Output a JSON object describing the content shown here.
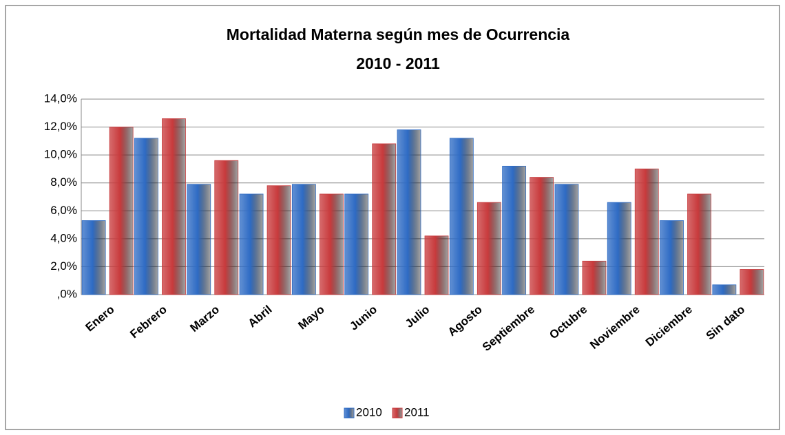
{
  "chart_data": {
    "type": "bar",
    "title": "Mortalidad Materna según mes de Ocurrencia",
    "subtitle": "2010 - 2011",
    "categories": [
      "Enero",
      "Febrero",
      "Marzo",
      "Abril",
      "Mayo",
      "Junio",
      "Julio",
      "Agosto",
      "Septiembre",
      "Octubre",
      "Noviembre",
      "Diciembre",
      "Sin dato"
    ],
    "series": [
      {
        "name": "2010",
        "color": "#2e6bc4",
        "values": [
          5.3,
          11.2,
          7.9,
          7.2,
          7.9,
          7.2,
          11.8,
          11.2,
          9.2,
          7.9,
          6.6,
          5.3,
          0.7
        ]
      },
      {
        "name": "2011",
        "color": "#c83a3c",
        "values": [
          12.0,
          12.6,
          9.6,
          7.8,
          7.2,
          10.8,
          4.2,
          6.6,
          8.4,
          2.4,
          9.0,
          7.2,
          1.8
        ]
      }
    ],
    "ylim": [
      0,
      14
    ],
    "yticks": [
      {
        "value": 0,
        "label": ",0%"
      },
      {
        "value": 2,
        "label": "2,0%"
      },
      {
        "value": 4,
        "label": "4,0%"
      },
      {
        "value": 6,
        "label": "6,0%"
      },
      {
        "value": 8,
        "label": "8,0%"
      },
      {
        "value": 10,
        "label": "10,0%"
      },
      {
        "value": 12,
        "label": "12,0%"
      },
      {
        "value": 14,
        "label": "14,0%"
      }
    ],
    "grid": true,
    "legend": "bottom"
  }
}
